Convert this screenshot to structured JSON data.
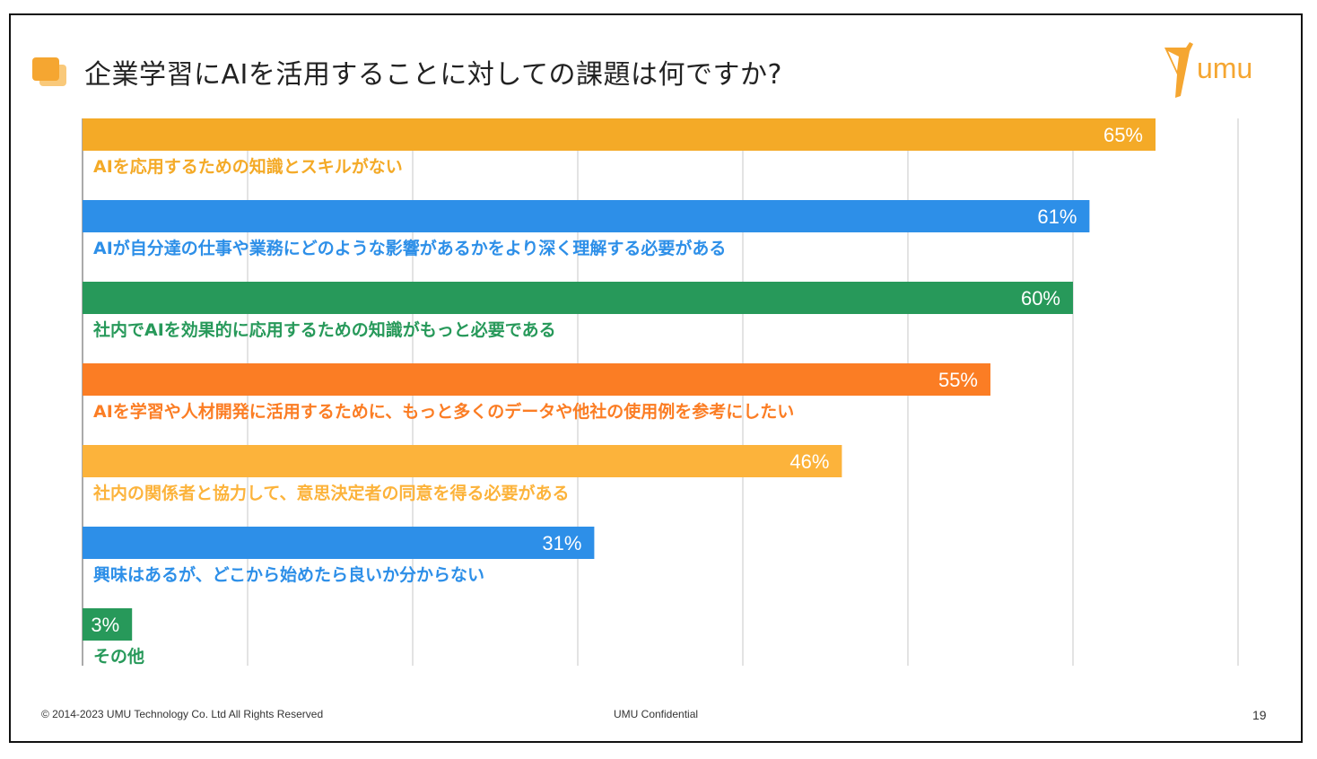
{
  "title": "企業学習にAIを活用することに対しての課題は何ですか?",
  "logo": {
    "text": "umu",
    "icon": "giraffe-icon",
    "color": "#f5a631"
  },
  "footer": {
    "copyright": "© 2014-2023 UMU Technology Co. Ltd All Rights Reserved",
    "confidential": "UMU Confidential",
    "page_number": "19"
  },
  "chart_data": {
    "type": "bar",
    "orientation": "horizontal",
    "title": "企業学習にAIを活用することに対しての課題は何ですか?",
    "xlabel": "",
    "ylabel": "",
    "xlim": [
      0,
      70
    ],
    "grid": true,
    "value_suffix": "%",
    "categories": [
      "AIを応用するための知識とスキルがない",
      "AIが自分達の仕事や業務にどのような影響があるかをより深く理解する必要がある",
      "社内でAIを効果的に応用するための知識がもっと必要である",
      "AIを学習や人材開発に活用するために、もっと多くのデータや他社の使用例を参考にしたい",
      "社内の関係者と協力して、意思決定者の同意を得る必要がある",
      "興味はあるが、どこから始めたら良いか分からない",
      "その他"
    ],
    "values": [
      65,
      61,
      60,
      55,
      46,
      31,
      3
    ],
    "colors": [
      "#f4aa27",
      "#2d8fe8",
      "#27995a",
      "#fb7d24",
      "#fcb33b",
      "#2d8fe8",
      "#27995a"
    ]
  }
}
